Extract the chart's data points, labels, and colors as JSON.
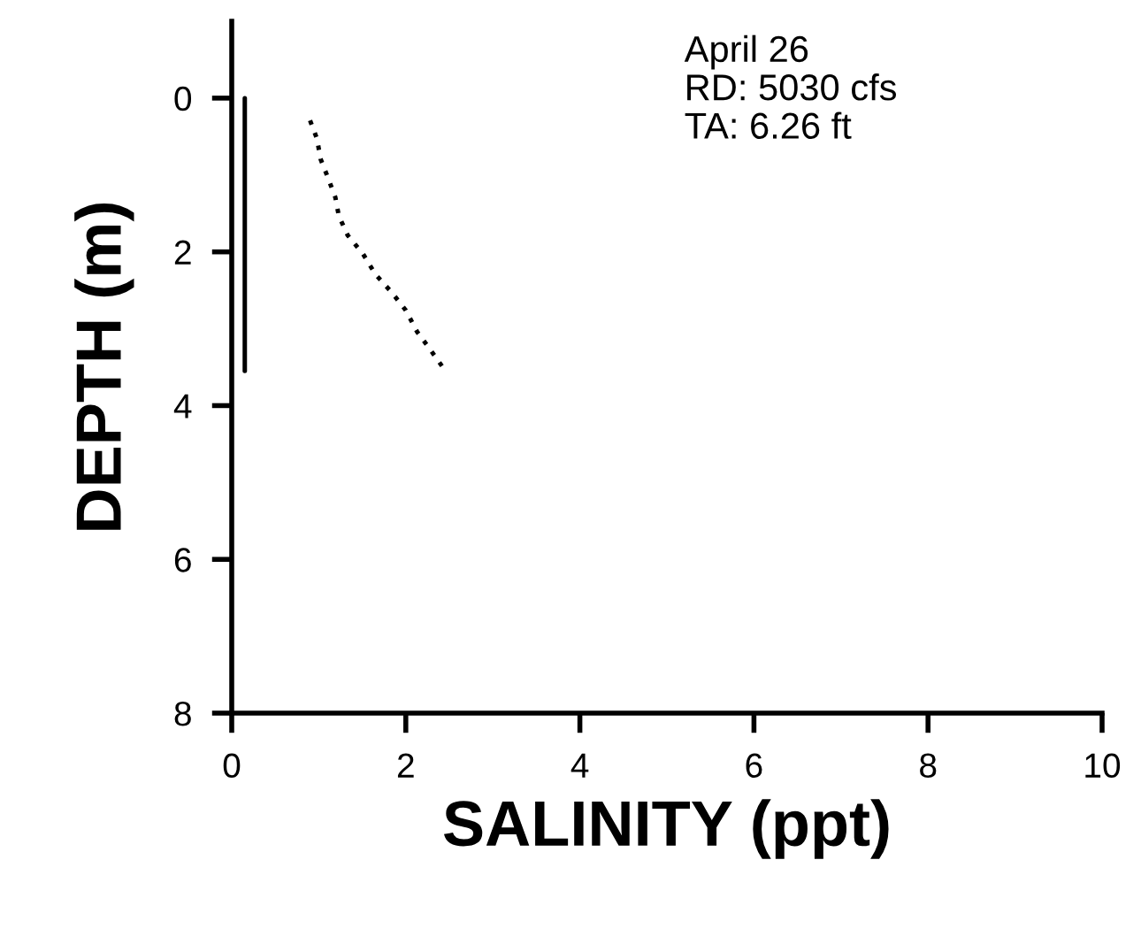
{
  "chart_data": {
    "type": "line",
    "xlabel": "SALINITY (ppt)",
    "ylabel": "DEPTH (m)",
    "xlim": [
      0,
      10
    ],
    "xticks": [
      0,
      2,
      4,
      6,
      8,
      10
    ],
    "ylim": [
      8,
      -1
    ],
    "yticks": [
      0,
      2,
      4,
      6,
      8
    ],
    "grid": false,
    "legend": false,
    "annotations": [
      "April 26\nRD: 5030 cfs\nTA: 6.26 ft"
    ],
    "series": [
      {
        "color": "#000000",
        "line_style": "solid",
        "x": [
          0.15,
          0.15
        ],
        "values": [
          0,
          3.55
        ]
      },
      {
        "color": "#000000",
        "line_style": "dotted",
        "x": [
          0.9,
          0.98,
          1.02,
          1.1,
          1.19,
          1.23,
          1.33,
          1.51,
          1.65,
          1.84,
          2.0,
          2.13,
          2.28,
          2.45
        ],
        "values": [
          0.29,
          0.53,
          0.79,
          1.02,
          1.29,
          1.53,
          1.78,
          2.03,
          2.29,
          2.53,
          2.76,
          3.04,
          3.27,
          3.54
        ]
      }
    ]
  }
}
